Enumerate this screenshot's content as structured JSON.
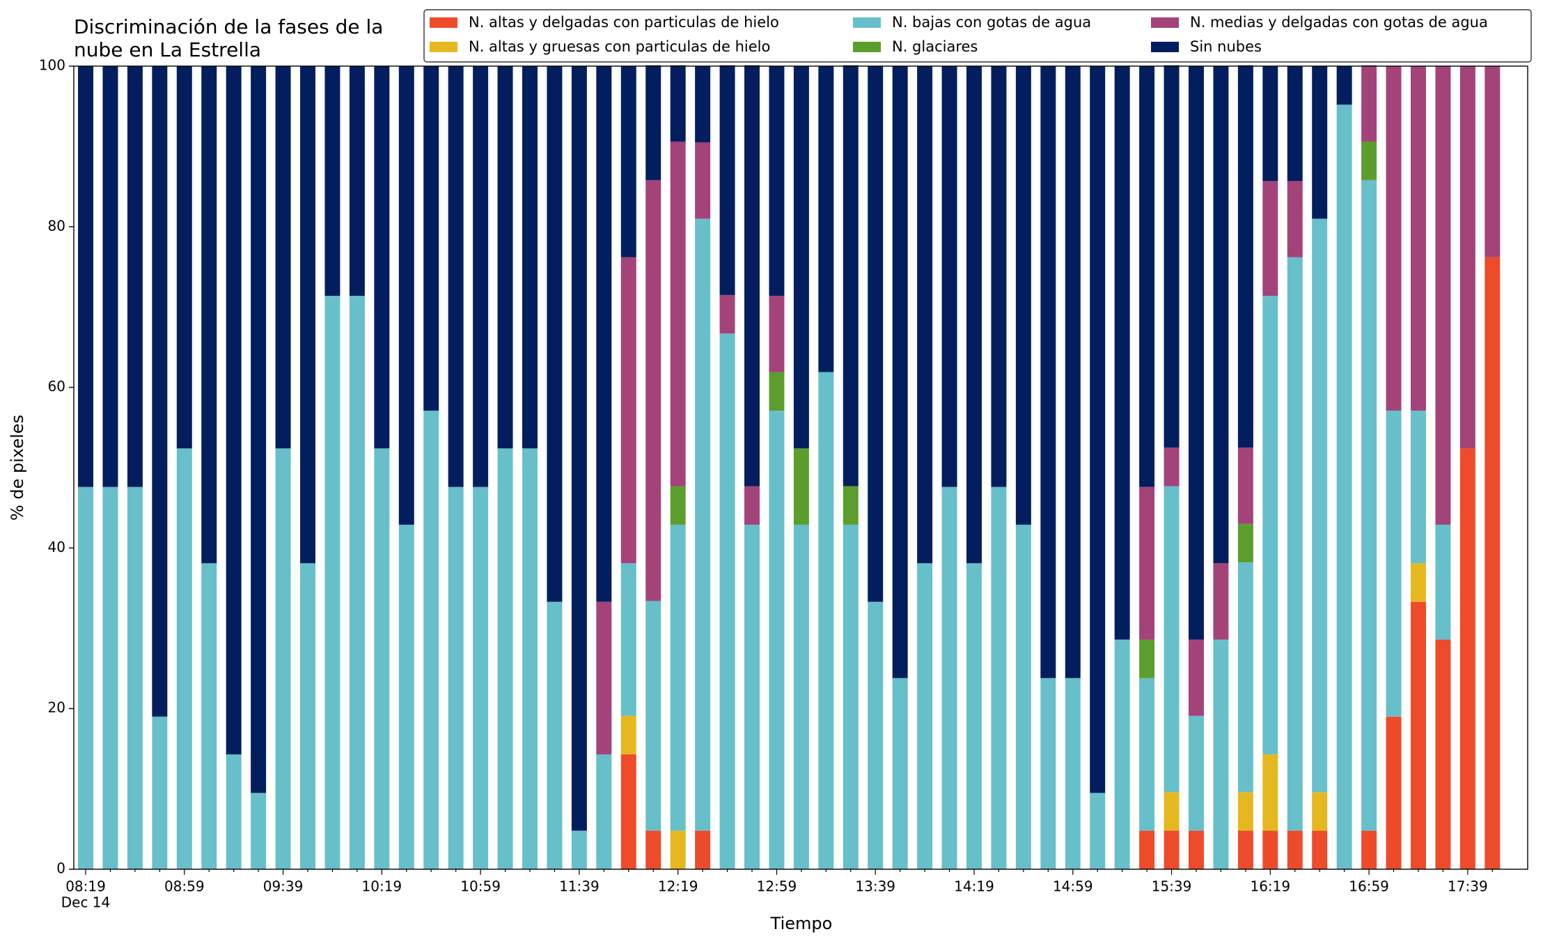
{
  "chart_data": {
    "type": "stacked_bar",
    "title": [
      "Discriminación de la fases de la",
      "nube en La Estrella"
    ],
    "x_label": "Tiempo",
    "y_label": "% de pixeles",
    "x_date_label": "Dec 14",
    "categories": [
      "08:19",
      null,
      null,
      null,
      "08:59",
      null,
      null,
      null,
      "09:39",
      null,
      null,
      null,
      "10:19",
      null,
      null,
      null,
      "10:59",
      null,
      null,
      null,
      "11:39",
      null,
      null,
      null,
      "12:19",
      null,
      null,
      null,
      "12:59",
      null,
      null,
      null,
      "13:39",
      null,
      null,
      null,
      "14:19",
      null,
      null,
      null,
      "14:59",
      null,
      null,
      null,
      "15:39",
      null,
      null,
      null,
      "16:19",
      null,
      null,
      null,
      "16:59",
      null,
      null,
      null,
      "17:39",
      null
    ],
    "ylim": [
      0,
      100
    ],
    "yticks": [
      0,
      20,
      40,
      60,
      80,
      100
    ],
    "grid": false,
    "legend": "top",
    "series": [
      {
        "name": "N. altas y delgadas con particulas de hielo",
        "color": "#ee4b2b",
        "values": [
          0,
          0,
          0,
          0,
          0,
          0,
          0,
          0,
          0,
          0,
          0,
          0,
          0,
          0,
          0,
          0,
          0,
          0,
          0,
          0,
          0,
          0,
          14.3,
          4.8,
          0,
          4.8,
          0,
          0,
          0,
          0,
          0,
          0,
          0,
          0,
          0,
          0,
          0,
          0,
          0,
          0,
          0,
          0,
          0,
          4.8,
          4.8,
          4.8,
          0,
          4.8,
          4.8,
          4.8,
          4.8,
          0,
          4.8,
          19.0,
          33.3,
          28.6,
          52.4,
          76.2
        ]
      },
      {
        "name": "N. altas y gruesas con particulas de hielo",
        "color": "#e6b820",
        "values": [
          0,
          0,
          0,
          0,
          0,
          0,
          0,
          0,
          0,
          0,
          0,
          0,
          0,
          0,
          0,
          0,
          0,
          0,
          0,
          0,
          0,
          0,
          4.8,
          0,
          4.8,
          0,
          0,
          0,
          0,
          0,
          0,
          0,
          0,
          0,
          0,
          0,
          0,
          0,
          0,
          0,
          0,
          0,
          0,
          0,
          4.8,
          0,
          0,
          4.8,
          9.5,
          0,
          4.8,
          0,
          0,
          0,
          4.8,
          0,
          0,
          0
        ]
      },
      {
        "name": "N. bajas con gotas de agua",
        "color": "#67bfca",
        "values": [
          47.6,
          47.6,
          47.6,
          19.0,
          52.4,
          38.1,
          14.3,
          9.5,
          52.4,
          38.1,
          71.4,
          71.4,
          52.4,
          42.9,
          57.1,
          47.6,
          47.6,
          52.4,
          52.4,
          33.3,
          4.8,
          14.3,
          19.0,
          28.6,
          38.1,
          76.2,
          66.7,
          42.9,
          57.1,
          42.9,
          61.9,
          42.9,
          33.3,
          23.8,
          38.1,
          47.6,
          38.1,
          47.6,
          42.9,
          23.8,
          23.8,
          9.5,
          28.6,
          19.0,
          38.1,
          14.3,
          28.6,
          28.6,
          57.1,
          71.4,
          71.4,
          95.2,
          81.0,
          38.1,
          19.0,
          14.3,
          0,
          0
        ]
      },
      {
        "name": "N. glaciares",
        "color": "#5c9e2e",
        "values": [
          0,
          0,
          0,
          0,
          0,
          0,
          0,
          0,
          0,
          0,
          0,
          0,
          0,
          0,
          0,
          0,
          0,
          0,
          0,
          0,
          0,
          0,
          0,
          0,
          4.8,
          0,
          0,
          0,
          4.8,
          9.5,
          0,
          4.8,
          0,
          0,
          0,
          0,
          0,
          0,
          0,
          0,
          0,
          0,
          0,
          4.8,
          0,
          0,
          0,
          4.8,
          0,
          0,
          0,
          0,
          4.8,
          0,
          0,
          0,
          0,
          0
        ]
      },
      {
        "name": "N. medias y delgadas con gotas de agua",
        "color": "#a3437a",
        "values": [
          0,
          0,
          0,
          0,
          0,
          0,
          0,
          0,
          0,
          0,
          0,
          0,
          0,
          0,
          0,
          0,
          0,
          0,
          0,
          0,
          0,
          19.0,
          38.1,
          52.4,
          42.9,
          9.5,
          4.8,
          4.8,
          9.5,
          0,
          0,
          0,
          0,
          0,
          0,
          0,
          0,
          0,
          0,
          0,
          0,
          0,
          0,
          19.0,
          4.8,
          9.5,
          9.5,
          9.5,
          14.3,
          9.5,
          0,
          0,
          9.5,
          42.9,
          42.9,
          57.1,
          47.6,
          23.8
        ]
      },
      {
        "name": "Sin nubes",
        "color": "#031e5e",
        "values": [
          52.4,
          52.4,
          52.4,
          81.0,
          47.6,
          61.9,
          85.7,
          90.5,
          47.6,
          61.9,
          28.6,
          28.6,
          47.6,
          57.1,
          42.9,
          52.4,
          52.4,
          47.6,
          47.6,
          66.7,
          95.2,
          66.7,
          23.8,
          14.3,
          9.5,
          9.5,
          28.6,
          52.4,
          28.6,
          47.6,
          38.1,
          52.4,
          66.7,
          76.2,
          61.9,
          52.4,
          61.9,
          52.4,
          57.1,
          76.2,
          76.2,
          90.5,
          71.4,
          52.4,
          47.6,
          71.4,
          61.9,
          47.6,
          14.3,
          14.3,
          19.0,
          4.8,
          0,
          0,
          0,
          0,
          0,
          0
        ]
      }
    ]
  }
}
